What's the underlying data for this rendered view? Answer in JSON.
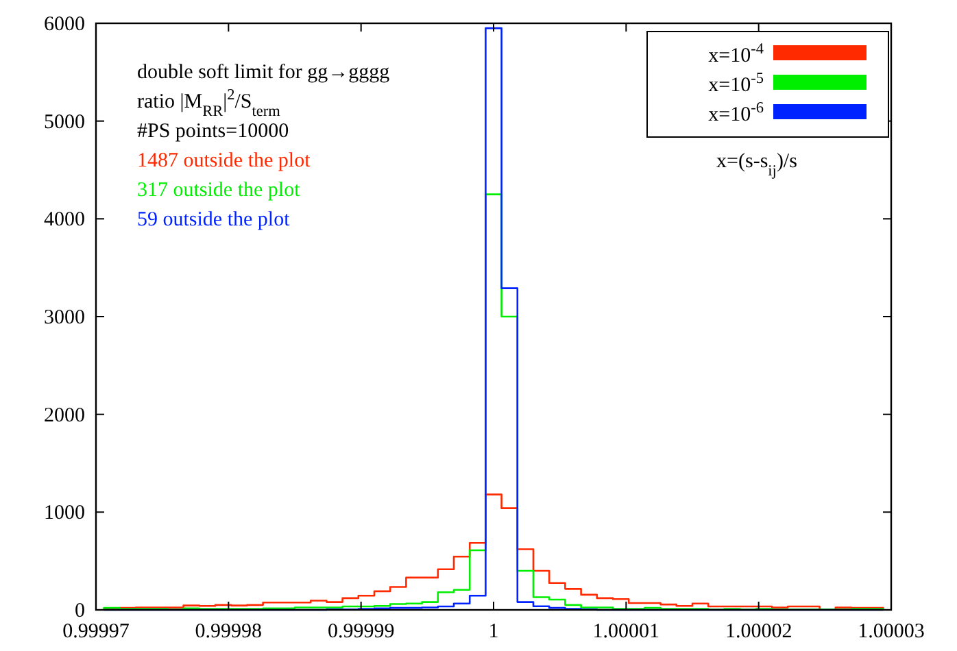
{
  "chart_data": {
    "type": "histogram",
    "xlabel": "x=(s-s$_{ij}$)/s",
    "annotations": [
      "double soft limit for gg→gggg",
      "ratio |M$_{RR}$|$^{2}$/S$_{term}$",
      "#PS points=10000",
      "1487 outside the plot",
      "317 outside the plot",
      "59 outside the plot"
    ],
    "bins": [
      0.9999706,
      0.9999718,
      0.999973,
      0.9999742,
      0.9999754,
      0.9999766,
      0.9999778,
      0.999979,
      0.9999802,
      0.9999814,
      0.9999826,
      0.9999838,
      0.999985,
      0.9999862,
      0.9999874,
      0.9999886,
      0.9999898,
      0.999991,
      0.9999922,
      0.9999934,
      0.9999946,
      0.9999958,
      0.999997,
      0.9999982,
      0.9999994,
      1.0000006,
      1.0000018,
      1.000003,
      1.0000042,
      1.0000054,
      1.0000066,
      1.0000078,
      1.000009,
      1.0000102,
      1.0000114,
      1.0000126,
      1.0000138,
      1.000015,
      1.0000162,
      1.0000174,
      1.0000186,
      1.0000198,
      1.000021,
      1.0000222,
      1.0000234,
      1.0000246,
      1.0000258,
      1.000027,
      1.0000282,
      1.0000294
    ],
    "series": [
      {
        "name": "x=10$^{-4}$",
        "color": "#ff2a00",
        "values": [
          10,
          20,
          25,
          25,
          25,
          45,
          40,
          50,
          45,
          50,
          75,
          75,
          75,
          95,
          80,
          120,
          145,
          190,
          235,
          330,
          330,
          415,
          545,
          685,
          1180,
          1040,
          620,
          400,
          275,
          215,
          155,
          120,
          110,
          70,
          70,
          55,
          40,
          65,
          35,
          35,
          35,
          35,
          25,
          35,
          35,
          5,
          25,
          20,
          20
        ]
      },
      {
        "name": "x=10$^{-5}$",
        "color": "#00ee00",
        "values": [
          20,
          10,
          10,
          10,
          5,
          15,
          10,
          10,
          10,
          10,
          15,
          15,
          25,
          25,
          25,
          35,
          35,
          40,
          60,
          65,
          80,
          180,
          205,
          610,
          4250,
          3000,
          400,
          130,
          105,
          50,
          25,
          25,
          10,
          10,
          20,
          10,
          10,
          10,
          5,
          10,
          5,
          10,
          5,
          5,
          5,
          5,
          5,
          10,
          10
        ]
      },
      {
        "name": "x=10$^{-6}$",
        "color": "#0022ff",
        "values": [
          0,
          0,
          0,
          0,
          0,
          0,
          0,
          0,
          0,
          0,
          0,
          0,
          0,
          0,
          5,
          5,
          10,
          15,
          20,
          20,
          25,
          35,
          65,
          145,
          5950,
          3290,
          80,
          37,
          20,
          10,
          5,
          0,
          0,
          0,
          0,
          0,
          0,
          0,
          0,
          0,
          0,
          0,
          0,
          0,
          0,
          0,
          0,
          0,
          0
        ]
      }
    ],
    "xlim": [
      0.99997,
      1.00003
    ],
    "xticks": [
      0.99997,
      0.99998,
      0.99999,
      1,
      1.00001,
      1.00002,
      1.00003
    ],
    "ylim": [
      0,
      6000
    ],
    "yticks": [
      0,
      1000,
      2000,
      3000,
      4000,
      5000,
      6000
    ],
    "legend": "top right"
  }
}
